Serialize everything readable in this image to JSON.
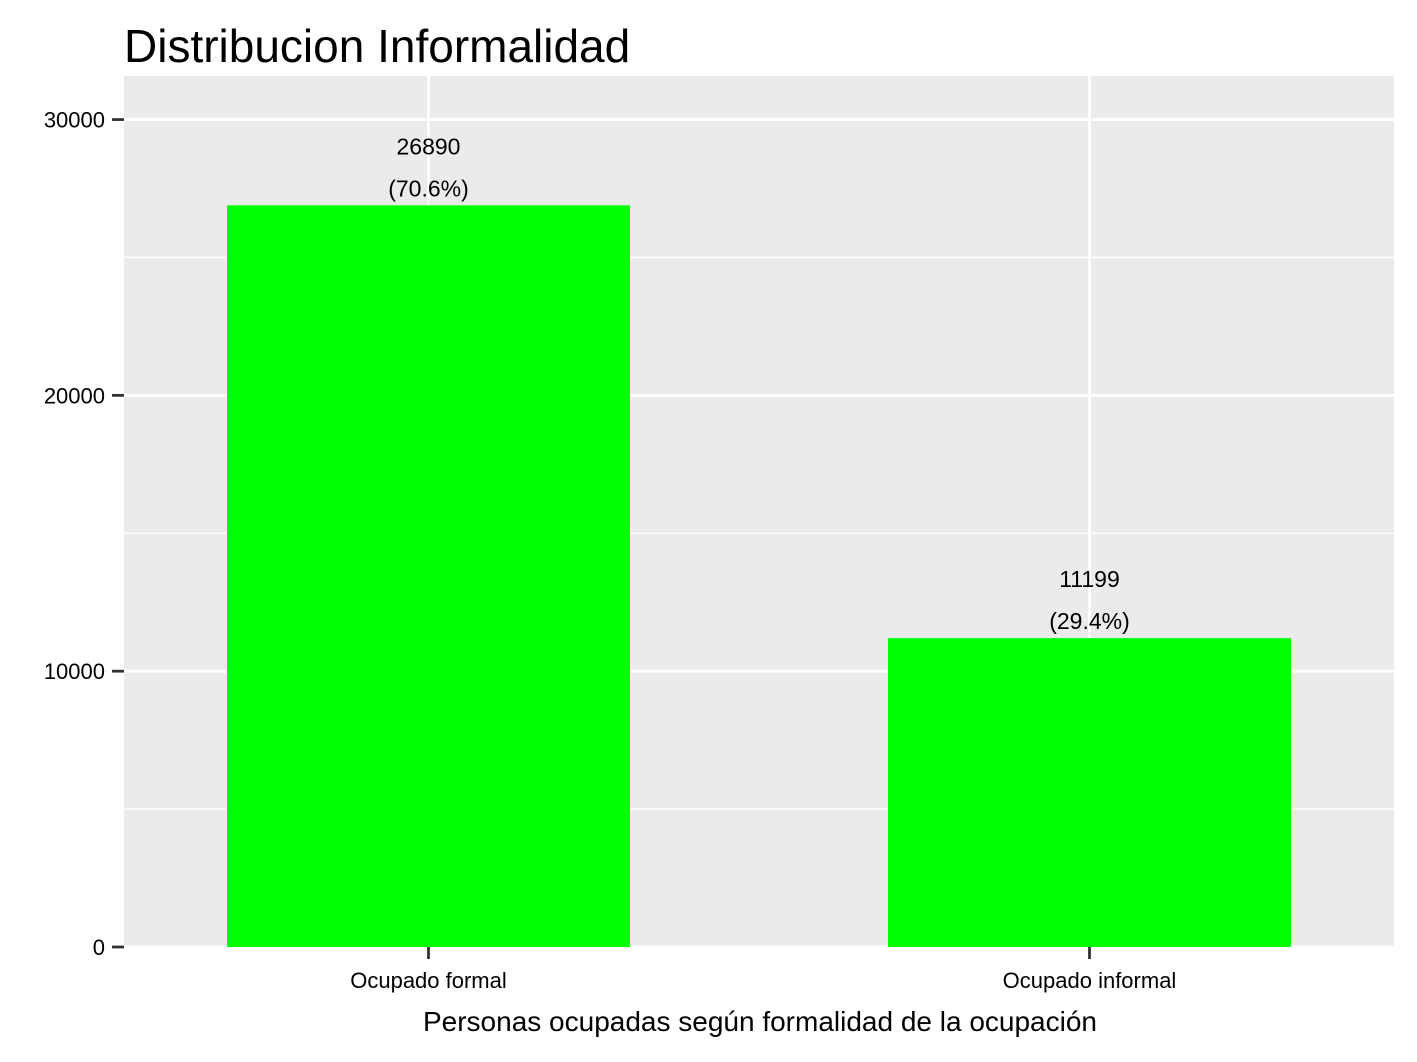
{
  "chart_data": {
    "type": "bar",
    "title": "Distribucion Informalidad",
    "xlabel": "Personas ocupadas según formalidad de la ocupación",
    "ylabel": "",
    "categories": [
      "Ocupado formal",
      "Ocupado informal"
    ],
    "values": [
      26890,
      11199
    ],
    "data_labels": [
      {
        "count": "26890",
        "percent": "(70.6%)"
      },
      {
        "count": "11199",
        "percent": "(29.4%)"
      }
    ],
    "ylim": [
      0,
      30000
    ],
    "yticks": [
      0,
      10000,
      20000,
      30000
    ],
    "ytick_labels": [
      "0",
      "10000",
      "20000",
      "30000"
    ],
    "grid": true,
    "legend": "none",
    "colors": {
      "bar": "#00ff00",
      "panel": "#ebebeb",
      "grid": "#ffffff",
      "text": "#000000",
      "axis_ticks": "#333333"
    }
  }
}
